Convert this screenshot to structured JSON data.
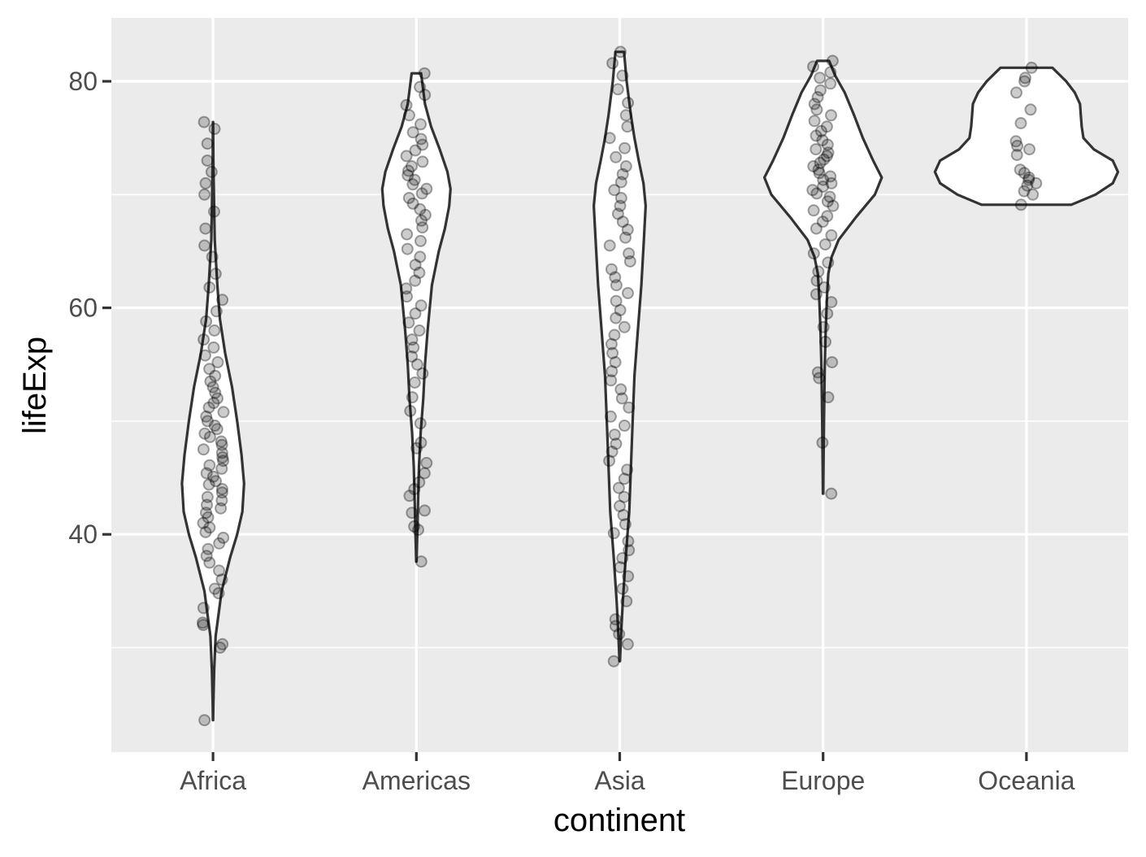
{
  "chart_data": {
    "type": "violin",
    "xlabel": "continent",
    "ylabel": "lifeExp",
    "categories": [
      "Africa",
      "Americas",
      "Asia",
      "Europe",
      "Oceania"
    ],
    "ylim": [
      21.5,
      86
    ],
    "y_ticks": [
      40,
      60,
      80
    ],
    "y_minor_ticks": [
      30,
      50,
      70
    ],
    "grid": true,
    "colors": {
      "panel": "#ebebeb",
      "grid": "#ffffff",
      "violin_fill": "#ffffff",
      "violin_outline": "#333333",
      "point": "#000000",
      "tick_label": "#4d4d4d",
      "axis_title": "#000000"
    },
    "summary": [
      {
        "category": "Africa",
        "min": 23.6,
        "max": 76.4
      },
      {
        "category": "Americas",
        "min": 37.6,
        "max": 80.7
      },
      {
        "category": "Asia",
        "min": 28.8,
        "max": 82.6
      },
      {
        "category": "Europe",
        "min": 43.6,
        "max": 81.8
      },
      {
        "category": "Oceania",
        "min": 69.1,
        "max": 81.2
      }
    ],
    "violins": [
      {
        "category": "Africa",
        "profile": [
          [
            23.6,
            0.1
          ],
          [
            25,
            0.4
          ],
          [
            28,
            1.3
          ],
          [
            31,
            3
          ],
          [
            35,
            10
          ],
          [
            38,
            20
          ],
          [
            40,
            28
          ],
          [
            42,
            34
          ],
          [
            44.5,
            36
          ],
          [
            47,
            33
          ],
          [
            50,
            28
          ],
          [
            53,
            22
          ],
          [
            56,
            14
          ],
          [
            59,
            8
          ],
          [
            62,
            5
          ],
          [
            66,
            2
          ],
          [
            70,
            1
          ],
          [
            73,
            0.4
          ],
          [
            76.4,
            0.1
          ]
        ]
      },
      {
        "category": "Americas",
        "profile": [
          [
            37.6,
            0.2
          ],
          [
            40,
            1
          ],
          [
            43,
            2
          ],
          [
            46,
            3
          ],
          [
            49,
            5
          ],
          [
            52,
            8
          ],
          [
            55,
            10
          ],
          [
            58,
            13
          ],
          [
            62,
            18
          ],
          [
            65,
            26
          ],
          [
            67,
            33
          ],
          [
            69,
            38
          ],
          [
            70.5,
            39.5
          ],
          [
            72,
            36
          ],
          [
            74,
            27
          ],
          [
            76,
            17
          ],
          [
            78,
            10
          ],
          [
            80.7,
            5.5
          ]
        ]
      },
      {
        "category": "Asia",
        "profile": [
          [
            28.8,
            0.3
          ],
          [
            31,
            1.5
          ],
          [
            34,
            3.5
          ],
          [
            38,
            7
          ],
          [
            42,
            11
          ],
          [
            46,
            13
          ],
          [
            50,
            15
          ],
          [
            54,
            17
          ],
          [
            58,
            21
          ],
          [
            62,
            25
          ],
          [
            66,
            28
          ],
          [
            69,
            30
          ],
          [
            71,
            27.5
          ],
          [
            73,
            22
          ],
          [
            75,
            17
          ],
          [
            77,
            13
          ],
          [
            80,
            8
          ],
          [
            82.6,
            5
          ]
        ]
      },
      {
        "category": "Europe",
        "profile": [
          [
            43.6,
            0.2
          ],
          [
            46,
            0.5
          ],
          [
            50,
            1
          ],
          [
            55,
            2
          ],
          [
            58,
            3
          ],
          [
            61,
            4.5
          ],
          [
            63,
            6
          ],
          [
            64.5,
            10
          ],
          [
            66,
            18
          ],
          [
            68,
            38
          ],
          [
            70,
            60
          ],
          [
            71.5,
            68
          ],
          [
            73,
            58
          ],
          [
            75,
            46
          ],
          [
            77,
            36
          ],
          [
            79,
            25
          ],
          [
            80.5,
            14
          ],
          [
            81.8,
            7
          ]
        ]
      },
      {
        "category": "Oceania",
        "profile": [
          [
            69.1,
            52
          ],
          [
            70,
            80
          ],
          [
            71,
            100
          ],
          [
            72,
            106
          ],
          [
            73,
            100
          ],
          [
            74,
            78
          ],
          [
            75,
            66
          ],
          [
            76,
            64
          ],
          [
            77,
            63
          ],
          [
            78,
            62
          ],
          [
            79,
            56
          ],
          [
            80,
            46
          ],
          [
            81.2,
            30
          ]
        ]
      }
    ],
    "points": [
      {
        "category": "Africa",
        "values": [
          23.6,
          30.0,
          30.3,
          32.0,
          32.2,
          33.5,
          34.8,
          35.2,
          36.0,
          36.8,
          37.5,
          38.1,
          38.7,
          39.2,
          39.7,
          40.2,
          40.6,
          41.0,
          41.5,
          41.9,
          42.3,
          42.6,
          43.0,
          43.3,
          43.7,
          44.0,
          44.4,
          44.7,
          45.1,
          45.4,
          45.8,
          46.1,
          46.5,
          46.8,
          47.2,
          47.5,
          47.9,
          48.2,
          48.6,
          48.9,
          49.3,
          49.6,
          50.0,
          50.4,
          50.8,
          51.2,
          51.6,
          52.0,
          52.5,
          53.0,
          53.5,
          54.0,
          54.6,
          55.2,
          55.8,
          56.5,
          57.2,
          58.0,
          58.8,
          59.7,
          60.7,
          61.8,
          63.0,
          64.5,
          65.5,
          67.0,
          68.5,
          70.0,
          71.0,
          72.0,
          73.0,
          74.5,
          75.8,
          76.4
        ]
      },
      {
        "category": "Americas",
        "values": [
          37.6,
          40.4,
          40.7,
          41.9,
          42.1,
          43.4,
          44.0,
          44.6,
          45.4,
          46.3,
          47.6,
          48.1,
          49.8,
          50.9,
          52.1,
          53.4,
          54.2,
          55.0,
          55.7,
          56.5,
          57.2,
          58.0,
          58.7,
          59.5,
          60.2,
          61.0,
          61.7,
          62.4,
          63.1,
          63.8,
          64.5,
          65.2,
          65.9,
          66.5,
          67.1,
          67.7,
          68.2,
          68.7,
          69.2,
          69.7,
          70.1,
          70.5,
          70.9,
          71.3,
          71.7,
          72.1,
          72.5,
          72.9,
          73.4,
          73.9,
          74.4,
          74.9,
          75.5,
          76.2,
          77.0,
          77.9,
          78.8,
          79.5,
          80.7
        ]
      },
      {
        "category": "Asia",
        "values": [
          28.8,
          30.3,
          31.2,
          31.9,
          32.5,
          34.1,
          35.2,
          36.3,
          37.1,
          37.9,
          38.6,
          39.4,
          40.1,
          40.9,
          41.7,
          42.5,
          43.3,
          44.1,
          44.9,
          45.7,
          46.5,
          47.3,
          48.0,
          48.8,
          49.6,
          50.4,
          51.2,
          52.0,
          52.8,
          53.6,
          54.4,
          55.2,
          56.0,
          56.8,
          57.6,
          58.3,
          59.1,
          59.8,
          60.6,
          61.3,
          62.0,
          62.7,
          63.4,
          64.1,
          64.8,
          65.5,
          66.2,
          66.9,
          67.6,
          68.3,
          69.0,
          69.7,
          70.4,
          71.1,
          71.8,
          72.5,
          73.3,
          74.1,
          75.0,
          76.0,
          77.0,
          78.1,
          79.3,
          80.5,
          81.6,
          82.6
        ]
      },
      {
        "category": "Europe",
        "values": [
          43.6,
          48.1,
          52.1,
          53.8,
          54.3,
          55.2,
          57.0,
          58.3,
          59.5,
          60.5,
          61.2,
          61.8,
          62.4,
          63.2,
          64.0,
          64.8,
          65.6,
          66.4,
          67.0,
          67.6,
          68.1,
          68.6,
          69.0,
          69.4,
          69.8,
          70.1,
          70.4,
          70.7,
          71.0,
          71.3,
          71.6,
          71.9,
          72.2,
          72.5,
          72.8,
          73.1,
          73.4,
          73.7,
          74.0,
          74.4,
          74.8,
          75.2,
          75.6,
          76.0,
          76.5,
          77.0,
          77.5,
          78.0,
          78.6,
          79.2,
          79.8,
          80.3,
          80.8,
          81.3,
          81.8
        ]
      },
      {
        "category": "Oceania",
        "values": [
          69.1,
          70.0,
          70.3,
          70.8,
          71.0,
          71.3,
          71.5,
          71.9,
          72.2,
          73.5,
          74.0,
          74.3,
          74.7,
          76.3,
          77.5,
          79.0,
          80.0,
          80.3,
          81.2
        ]
      }
    ]
  }
}
